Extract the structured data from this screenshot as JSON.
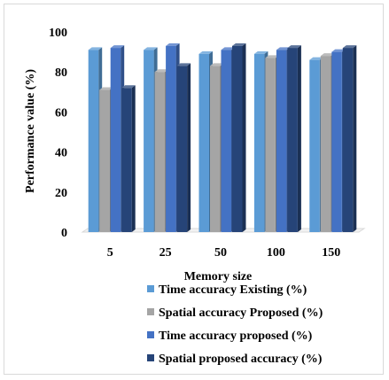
{
  "chart_data": {
    "type": "bar",
    "title": "",
    "xlabel": "Memory size",
    "ylabel": "Performance value (%)",
    "ylim": [
      0,
      100
    ],
    "yticks": [
      0,
      20,
      40,
      60,
      80,
      100
    ],
    "grid": false,
    "legend_position": "bottom-right",
    "categories": [
      "5",
      "25",
      "50",
      "100",
      "150"
    ],
    "series": [
      {
        "name": "Time accuracy Existing (%)",
        "color": "#5b9bd5",
        "values": [
          91,
          91,
          89,
          89,
          86
        ]
      },
      {
        "name": "Spatial accuracy Proposed (%)",
        "color": "#a5a5a5",
        "values": [
          71,
          80,
          83,
          87,
          88
        ]
      },
      {
        "name": "Time accuracy proposed (%)",
        "color": "#4472c4",
        "values": [
          92,
          93,
          91,
          91,
          90
        ]
      },
      {
        "name": "Spatial proposed accuracy  (%)",
        "color": "#264478",
        "values": [
          72,
          83,
          93,
          92,
          92
        ]
      }
    ]
  }
}
